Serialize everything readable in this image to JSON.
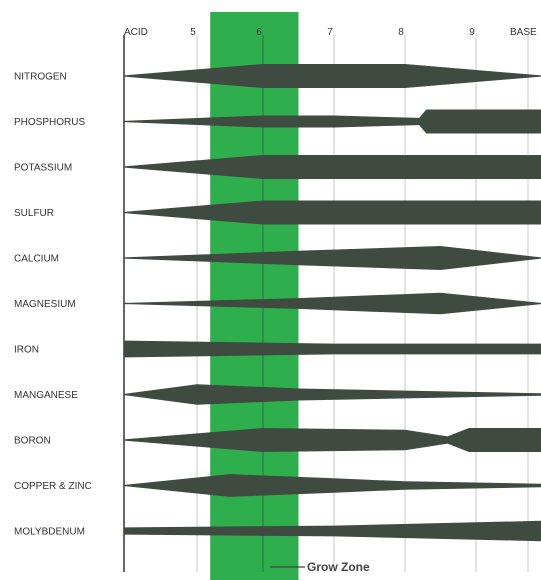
{
  "chart_data": {
    "type": "area",
    "x_axis": {
      "ticks": [
        {
          "label": "ACID",
          "value": 4.5
        },
        {
          "label": "5",
          "value": 5
        },
        {
          "label": "6",
          "value": 6
        },
        {
          "label": "7",
          "value": 7
        },
        {
          "label": "8",
          "value": 8
        },
        {
          "label": "9",
          "value": 9
        },
        {
          "label": "BASE",
          "value": 9.5
        }
      ],
      "range": [
        4.5,
        10.0
      ],
      "highlight_tick": "6"
    },
    "grow_zone": {
      "label": "Grow Zone",
      "from": 5.2,
      "to": 6.5
    },
    "colors": {
      "band": "#3f4a41",
      "grow_zone": "#2fae4e",
      "highlight_tick": "#c0392b",
      "gridline": "#c9c9c9"
    },
    "series": [
      {
        "name": "NITROGEN",
        "points": [
          [
            4.5,
            0.05
          ],
          [
            6.0,
            1.0
          ],
          [
            8.0,
            1.0
          ],
          [
            10.0,
            0.05
          ]
        ]
      },
      {
        "name": "PHOSPHORUS",
        "points": [
          [
            4.5,
            0.05
          ],
          [
            6.0,
            0.5
          ],
          [
            7.0,
            0.5
          ],
          [
            8.2,
            0.3
          ],
          [
            8.3,
            1.0
          ],
          [
            10.0,
            1.0
          ]
        ]
      },
      {
        "name": "POTASSIUM",
        "points": [
          [
            4.5,
            0.05
          ],
          [
            6.0,
            1.0
          ],
          [
            10.0,
            1.0
          ]
        ]
      },
      {
        "name": "SULFUR",
        "points": [
          [
            4.5,
            0.05
          ],
          [
            6.0,
            1.0
          ],
          [
            10.0,
            1.0
          ]
        ]
      },
      {
        "name": "CALCIUM",
        "points": [
          [
            4.5,
            0.05
          ],
          [
            6.5,
            0.6
          ],
          [
            8.5,
            1.0
          ],
          [
            10.0,
            0.05
          ]
        ]
      },
      {
        "name": "MAGNESIUM",
        "points": [
          [
            4.5,
            0.05
          ],
          [
            6.5,
            0.45
          ],
          [
            8.5,
            0.9
          ],
          [
            10.0,
            0.05
          ]
        ]
      },
      {
        "name": "IRON",
        "points": [
          [
            4.5,
            0.7
          ],
          [
            7.0,
            0.45
          ],
          [
            10.0,
            0.45
          ]
        ]
      },
      {
        "name": "MANGANESE",
        "points": [
          [
            4.5,
            0.05
          ],
          [
            5.0,
            0.85
          ],
          [
            6.5,
            0.5
          ],
          [
            10.0,
            0.1
          ]
        ]
      },
      {
        "name": "BORON",
        "points": [
          [
            4.5,
            0.05
          ],
          [
            6.0,
            1.0
          ],
          [
            8.0,
            0.85
          ],
          [
            8.6,
            0.3
          ],
          [
            8.9,
            1.0
          ],
          [
            10.0,
            1.0
          ]
        ]
      },
      {
        "name": "COPPER & ZINC",
        "points": [
          [
            4.5,
            0.05
          ],
          [
            5.5,
            0.95
          ],
          [
            7.0,
            0.6
          ],
          [
            8.0,
            0.35
          ],
          [
            10.0,
            0.15
          ]
        ]
      },
      {
        "name": "MOLYBDENUM",
        "points": [
          [
            4.5,
            0.3
          ],
          [
            7.0,
            0.45
          ],
          [
            10.0,
            0.85
          ]
        ]
      }
    ]
  }
}
